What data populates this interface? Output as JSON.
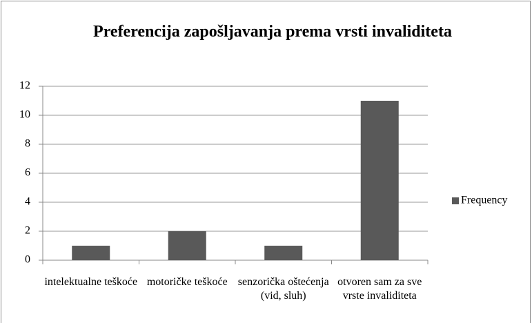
{
  "chart_data": {
    "type": "bar",
    "title": "Preferencija zapošljavanja prema vrsti invaliditeta",
    "categories": [
      "intelektualne teškoće",
      "motoričke teškoće",
      "senzorička oštećenja (vid, sluh)",
      "otvoren sam za sve vrste invaliditeta"
    ],
    "series": [
      {
        "name": "Frequency",
        "color": "#595959",
        "values": [
          1,
          2,
          1,
          11
        ]
      }
    ],
    "ylim": [
      0,
      12
    ],
    "yticks": [
      0,
      2,
      4,
      6,
      8,
      10,
      12
    ],
    "grid": true,
    "legend": "right"
  }
}
